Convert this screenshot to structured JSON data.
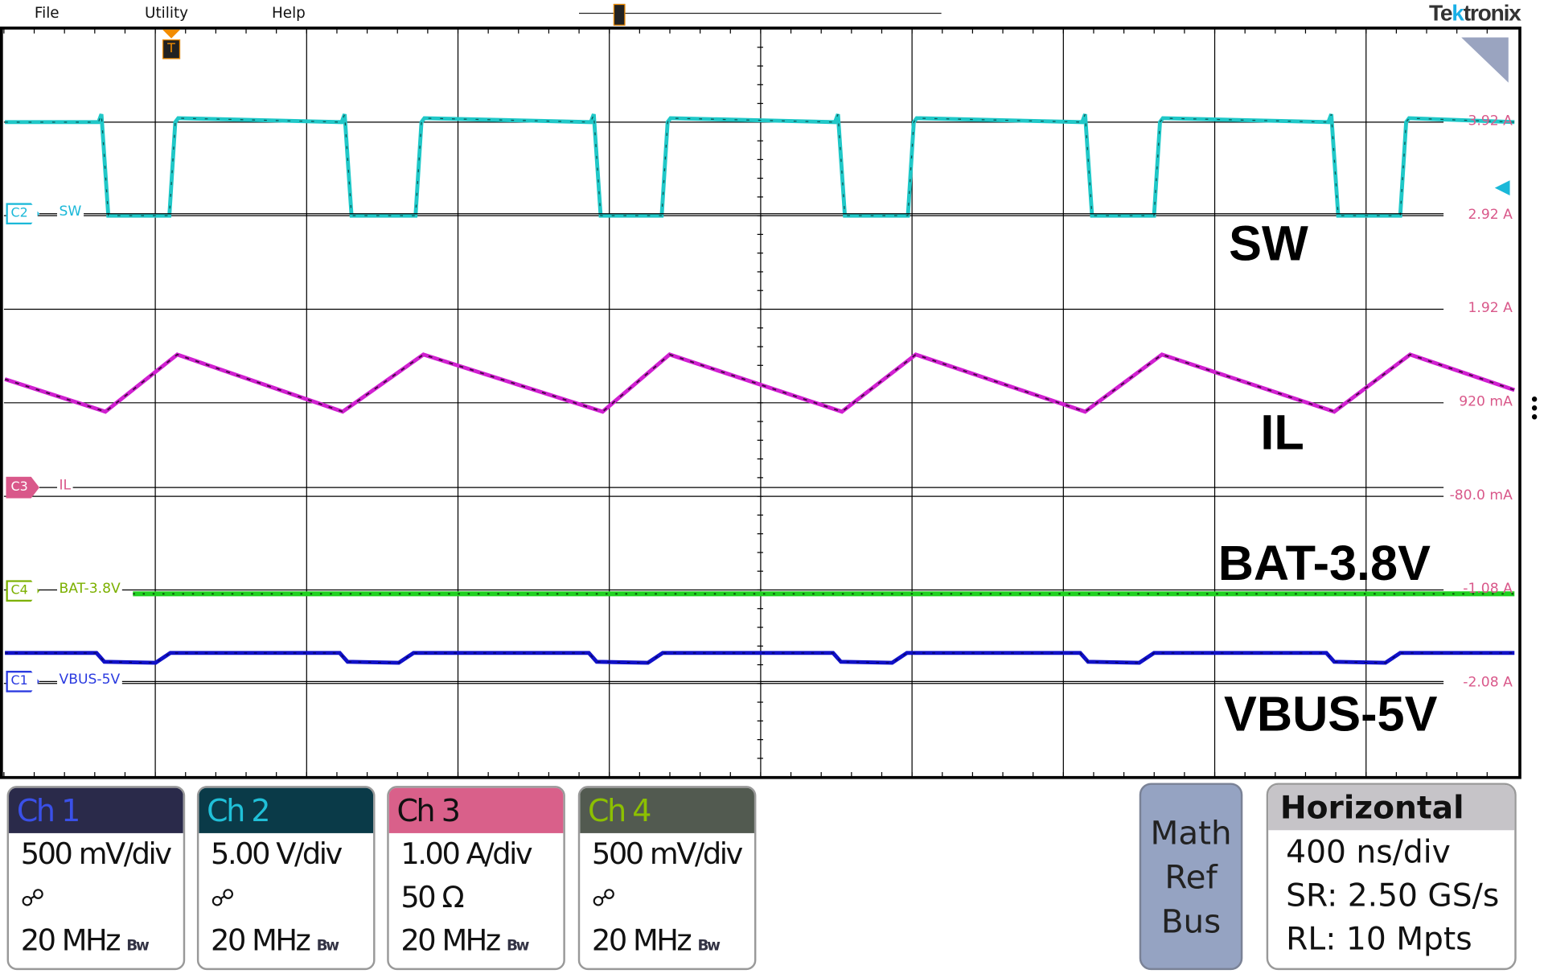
{
  "menu": {
    "items": [
      {
        "label": "File"
      },
      {
        "label": "Utility"
      },
      {
        "label": "Help"
      }
    ]
  },
  "brand": {
    "prefix": "Te",
    "accent": "k",
    "suffix": "tronix"
  },
  "trigger": {
    "label": "T",
    "color": "#f28c00"
  },
  "scale_labels": [
    "3.92 A",
    "2.92 A",
    "1.92 A",
    "920 mA",
    "-80.0 mA",
    "-1.08 A",
    "-2.08 A"
  ],
  "channel_markers": [
    {
      "id": "C2",
      "name": "SW",
      "color": "#1ab8d8"
    },
    {
      "id": "C3",
      "name": "IL",
      "color": "#d9588a"
    },
    {
      "id": "C4",
      "name": "BAT-3.8V",
      "color": "#7cb000"
    },
    {
      "id": "C1",
      "name": "VBUS-5V",
      "color": "#2a3ae0"
    }
  ],
  "annotations": [
    {
      "text": "SW",
      "color": "#1ab0e6"
    },
    {
      "text": "IL",
      "color": "#b040c0"
    },
    {
      "text": "BAT-3.8V",
      "color": "#1fb040"
    },
    {
      "text": "VBUS-5V",
      "color": "#0a14e0"
    }
  ],
  "trace_colors": {
    "ch1": "#1010c8",
    "ch2": "#20c8c8",
    "ch3": "#d020d0",
    "ch4": "#20d020"
  },
  "channels": [
    {
      "title": "Ch 1",
      "header_bg": "#2a2a4a",
      "title_color": "#3a50e8",
      "lines": [
        "500 mV/div",
        "",
        "20 MHz"
      ],
      "probe_icon": true
    },
    {
      "title": "Ch 2",
      "header_bg": "#0a3a48",
      "title_color": "#20c0d8",
      "lines": [
        "5.00 V/div",
        "",
        "20 MHz"
      ],
      "probe_icon": true
    },
    {
      "title": "Ch 3",
      "header_bg": "#d9608a",
      "title_color": "#111111",
      "lines": [
        "1.00 A/div",
        "50 Ω",
        "20 MHz"
      ],
      "probe_icon": false
    },
    {
      "title": "Ch 4",
      "header_bg": "#525a50",
      "title_color": "#8cc000",
      "lines": [
        "500 mV/div",
        "",
        "20 MHz"
      ],
      "probe_icon": true
    }
  ],
  "bw_badge": "Bw",
  "math_ref_bus": {
    "lines": [
      "Math",
      "Ref",
      "Bus"
    ]
  },
  "horizontal": {
    "title": "Horizontal",
    "scale": "400 ns/div",
    "sample_rate": "SR: 2.50 GS/s",
    "record_length": "RL: 10 Mpts"
  }
}
